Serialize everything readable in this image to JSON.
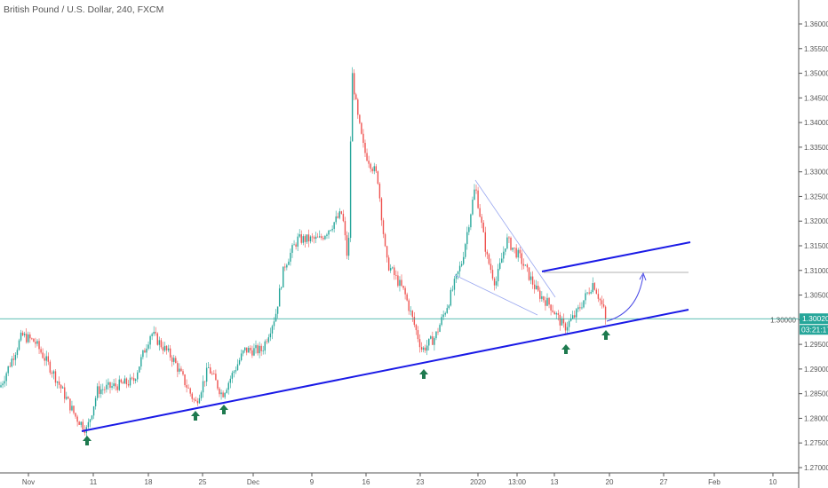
{
  "header": {
    "title": "British Pound / U.S. Dollar, 240, FXCM"
  },
  "colors": {
    "up": "#26a69a",
    "down": "#ef5350",
    "trendline": "#1a1ae6",
    "arrow": "#1e7a4f",
    "price_line": "#26a69a"
  },
  "price_tag": {
    "value": "1.30020",
    "countdown": "03:21:17"
  },
  "chart_data": {
    "type": "candlestick",
    "symbol": "GBPUSD",
    "interval": "240",
    "ylim": [
      1.27,
      1.36
    ],
    "y_ticks": [
      "1.36000",
      "1.35500",
      "1.35000",
      "1.34500",
      "1.34000",
      "1.33500",
      "1.33000",
      "1.32500",
      "1.32000",
      "1.31500",
      "1.31000",
      "1.30500",
      "1.30000",
      "1.29500",
      "1.29000",
      "1.28500",
      "1.28000",
      "1.27500",
      "1.27000"
    ],
    "x_ticks": [
      {
        "label": "Nov",
        "date": "2019-11-01"
      },
      {
        "label": "11",
        "date": "2019-11-11"
      },
      {
        "label": "18",
        "date": "2019-11-18"
      },
      {
        "label": "25",
        "date": "2019-11-25"
      },
      {
        "label": "Dec",
        "date": "2019-12-02"
      },
      {
        "label": "9",
        "date": "2019-12-09"
      },
      {
        "label": "16",
        "date": "2019-12-16"
      },
      {
        "label": "23",
        "date": "2019-12-23"
      },
      {
        "label": "2020",
        "date": "2020-01-01"
      },
      {
        "label": "13:00",
        "date": "2020-01-07"
      },
      {
        "label": "13",
        "date": "2020-01-13"
      },
      {
        "label": "20",
        "date": "2020-01-20"
      },
      {
        "label": "27",
        "date": "2020-01-27"
      },
      {
        "label": "Feb",
        "date": "2020-02-03"
      },
      {
        "label": "10",
        "date": "2020-02-10"
      }
    ],
    "price_path": [
      [
        "2019-10-28 00:00",
        1.2875
      ],
      [
        "2019-10-31 00:00",
        1.2968
      ],
      [
        "2019-11-02 00:00",
        1.2955
      ],
      [
        "2019-11-04 19:00",
        1.2893
      ],
      [
        "2019-11-08 07:00",
        1.2803
      ],
      [
        "2019-11-10 00:00",
        1.2776
      ],
      [
        "2019-11-11 13:00",
        1.2857
      ],
      [
        "2019-11-16 02:00",
        1.2875
      ],
      [
        "2019-11-18 08:00",
        1.2974
      ],
      [
        "2019-11-21 05:00",
        1.292
      ],
      [
        "2019-11-24 02:00",
        1.283
      ],
      [
        "2019-11-25 20:00",
        1.2902
      ],
      [
        "2019-11-27 17:00",
        1.2848
      ],
      [
        "2019-11-30 19:00",
        1.2938
      ],
      [
        "2019-12-03 01:00",
        1.2938
      ],
      [
        "2019-12-04 16:00",
        1.301
      ],
      [
        "2019-12-05 17:00",
        1.3109
      ],
      [
        "2019-12-07 07:00",
        1.3163
      ],
      [
        "2019-12-10 01:00",
        1.3163
      ],
      [
        "2019-12-12 22:00",
        1.3217
      ],
      [
        "2019-12-13 17:00",
        1.3109
      ],
      [
        "2019-12-14 04:00",
        1.3505
      ],
      [
        "2019-12-14 21:00",
        1.3415
      ],
      [
        "2019-12-15 18:00",
        1.3343
      ],
      [
        "2019-12-17 12:00",
        1.3289
      ],
      [
        "2019-12-18 15:00",
        1.3118
      ],
      [
        "2019-12-20 23:00",
        1.3055
      ],
      [
        "2019-12-23 07:00",
        1.2938
      ],
      [
        "2019-12-25 08:00",
        1.2965
      ],
      [
        "2019-12-27 10:00",
        1.3037
      ],
      [
        "2019-12-29 12:00",
        1.3118
      ],
      [
        "2019-12-31 14:00",
        1.3271
      ],
      [
        "2020-01-02 09:00",
        1.3127
      ],
      [
        "2020-01-03 17:00",
        1.3073
      ],
      [
        "2020-01-05 09:00",
        1.3163
      ],
      [
        "2020-01-07 10:00",
        1.3127
      ],
      [
        "2020-01-10 07:00",
        1.3055
      ],
      [
        "2020-01-12 10:00",
        1.3028
      ],
      [
        "2020-01-14 06:00",
        1.2983
      ],
      [
        "2020-01-15 17:00",
        1.301
      ],
      [
        "2020-01-17 23:00",
        1.3076
      ],
      [
        "2020-01-19 16:00",
        1.3002
      ]
    ]
  }
}
